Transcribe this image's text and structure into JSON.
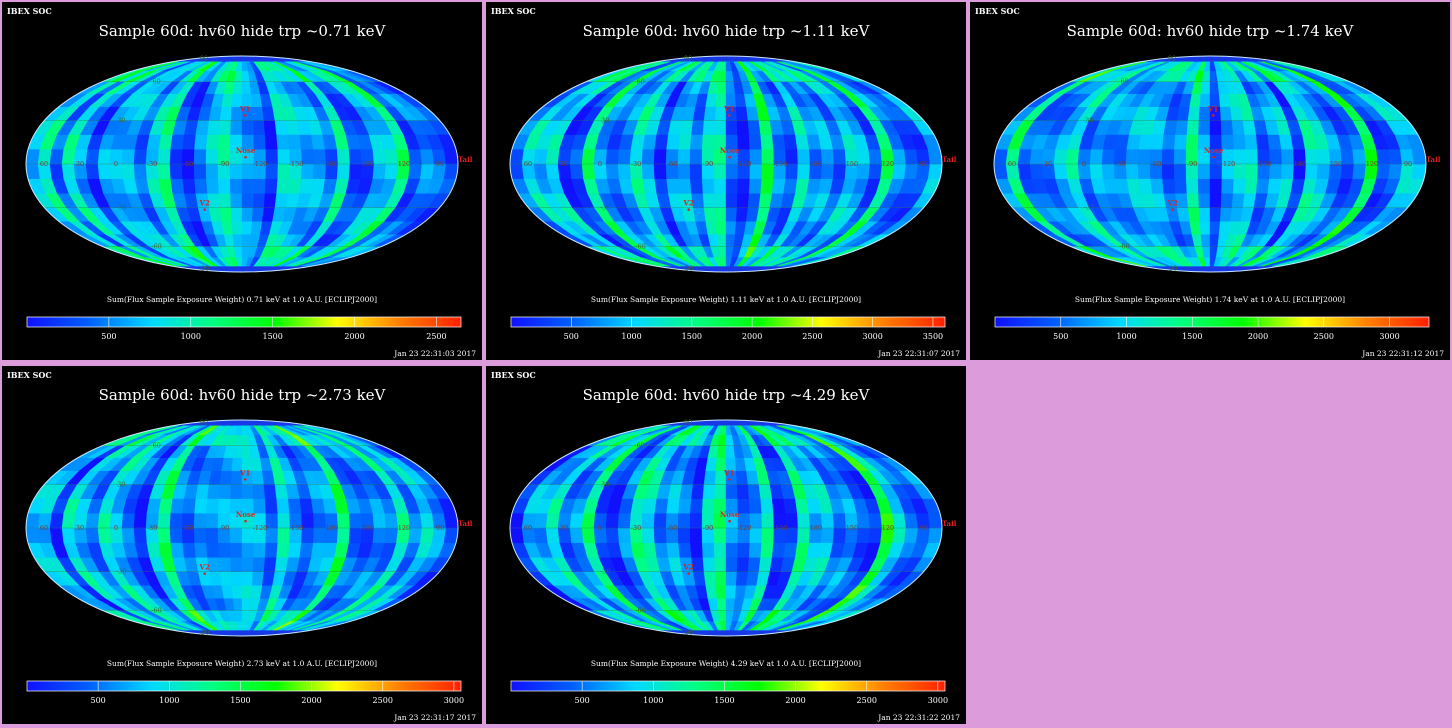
{
  "panels": [
    {
      "header": "IBEX SOC",
      "title": "Sample 60d: hv60 hide trp ~0.71 keV",
      "caption": "Sum(Flux Sample Exposure Weight) 0.71 keV at 1.0 A.U. [ECLIPJ2000]",
      "ticks": [
        "500",
        "1000",
        "1500",
        "2000",
        "2500"
      ],
      "scale_max": 2650,
      "timestamp": "Jan 23 22:31:03 2017"
    },
    {
      "header": "IBEX SOC",
      "title": "Sample 60d: hv60 hide trp ~1.11 keV",
      "caption": "Sum(Flux Sample Exposure Weight) 1.11 keV at 1.0 A.U. [ECLIPJ2000]",
      "ticks": [
        "500",
        "1000",
        "1500",
        "2000",
        "2500",
        "3000",
        "3500"
      ],
      "scale_max": 3600,
      "timestamp": "Jan 23 22:31:07 2017"
    },
    {
      "header": "IBEX SOC",
      "title": "Sample 60d: hv60 hide trp ~1.74 keV",
      "caption": "Sum(Flux Sample Exposure Weight) 1.74 keV at 1.0 A.U. [ECLIPJ2000]",
      "ticks": [
        "500",
        "1000",
        "1500",
        "2000",
        "2500",
        "3000"
      ],
      "scale_max": 3300,
      "timestamp": "Jan 23 22:31:12 2017"
    },
    {
      "header": "IBEX SOC",
      "title": "Sample 60d: hv60 hide trp ~2.73 keV",
      "caption": "Sum(Flux Sample Exposure Weight) 2.73 keV at 1.0 A.U. [ECLIPJ2000]",
      "ticks": [
        "500",
        "1000",
        "1500",
        "2000",
        "2500",
        "3000"
      ],
      "scale_max": 3050,
      "timestamp": "Jan 23 22:31:17 2017"
    },
    {
      "header": "IBEX SOC",
      "title": "Sample 60d: hv60 hide trp ~4.29 keV",
      "caption": "Sum(Flux Sample Exposure Weight) 4.29 keV at 1.0 A.U. [ECLIPJ2000]",
      "ticks": [
        "500",
        "1000",
        "1500",
        "2000",
        "2500",
        "3000"
      ],
      "scale_max": 3050,
      "timestamp": "Jan 23 22:31:22 2017"
    }
  ],
  "map_labels": {
    "lon": [
      "60",
      "30",
      "0",
      "-30",
      "-60",
      "-90",
      "-120",
      "-150",
      "180",
      "150",
      "120",
      "90"
    ],
    "lat": [
      "60",
      "30",
      "-30",
      "-60"
    ],
    "lat_poles": [
      "90",
      "-90"
    ],
    "markers": [
      "V1",
      "V2",
      "Nose",
      "Tail"
    ]
  },
  "colors": {
    "frame": "#dc9cdc",
    "background": "#000000",
    "colormap": [
      "#1010ff",
      "#0060ff",
      "#00d8ff",
      "#00ff80",
      "#00ff00",
      "#ffff00",
      "#ff8000",
      "#ff2000"
    ],
    "marker": "#e02020"
  }
}
